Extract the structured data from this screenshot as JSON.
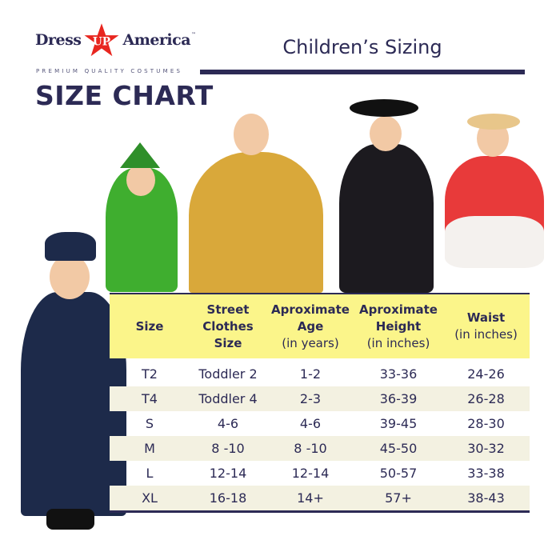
{
  "brand": {
    "name_left": "Dress",
    "name_star": "UP",
    "name_right": "America",
    "tm": "™",
    "tagline": "PREMIUM QUALITY COSTUMES",
    "star_color": "#e8261f"
  },
  "title": "SIZE CHART",
  "heading": "Children’s Sizing",
  "colors": {
    "navy": "#2c2a55",
    "header_yellow": "#fbf58a",
    "row_alt": "#f3f1e1"
  },
  "table": {
    "headers": [
      {
        "title": "Size",
        "sub": ""
      },
      {
        "title": "Street Clothes Size",
        "sub": ""
      },
      {
        "title": "Aproximate Age",
        "sub": "(in years)"
      },
      {
        "title": "Aproximate Height",
        "sub": "(in inches)"
      },
      {
        "title": "Waist",
        "sub": "(in inches)"
      }
    ],
    "rows": [
      [
        "T2",
        "Toddler 2",
        "1-2",
        "33-36",
        "24-26"
      ],
      [
        "T4",
        "Toddler 4",
        "2-3",
        "36-39",
        "26-28"
      ],
      [
        "S",
        "4-6",
        "4-6",
        "39-45",
        "28-30"
      ],
      [
        "M",
        "8 -10",
        "8 -10",
        "45-50",
        "30-32"
      ],
      [
        "L",
        "12-14",
        "12-14",
        "50-57",
        "33-38"
      ],
      [
        "XL",
        "16-18",
        "14+",
        "57+",
        "38-43"
      ]
    ]
  }
}
